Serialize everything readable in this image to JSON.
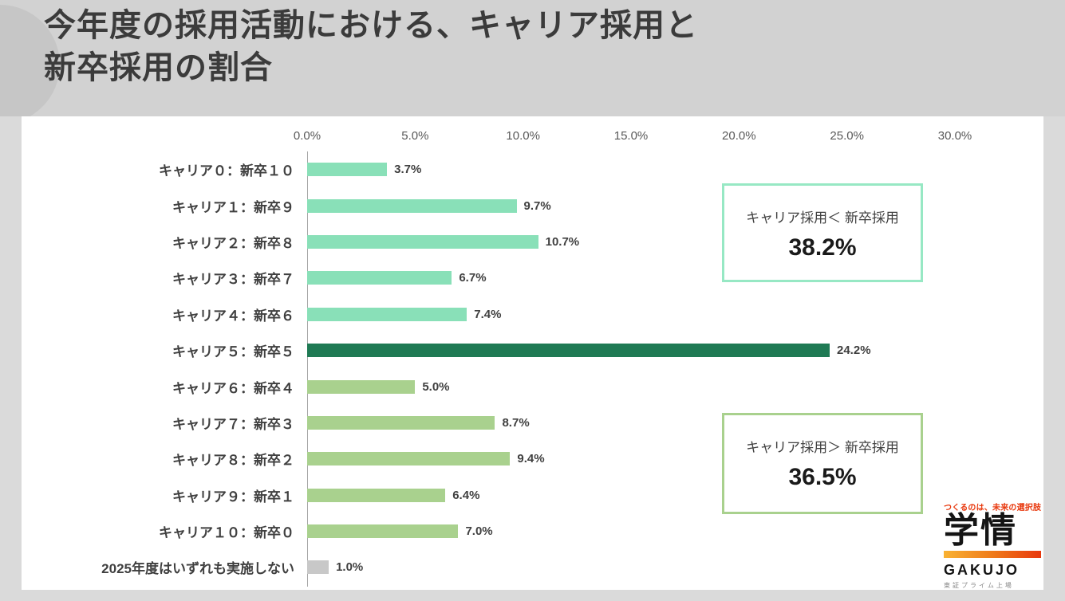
{
  "header": {
    "title_line1": "今年度の採用活動における、キャリア採用と",
    "title_line2": "新卒採用の割合"
  },
  "chart_data": {
    "type": "bar",
    "orientation": "horizontal",
    "title": "今年度の採用活動における、キャリア採用と新卒採用の割合",
    "axis_ticks": [
      "0.0%",
      "5.0%",
      "10.0%",
      "15.0%",
      "20.0%",
      "25.0%",
      "30.0%"
    ],
    "axis_max": 30,
    "grid": false,
    "categories": [
      "キャリア０：新卒１０",
      "キャリア１：新卒９",
      "キャリア２：新卒８",
      "キャリア３：新卒７",
      "キャリア４：新卒６",
      "キャリア５：新卒５",
      "キャリア６：新卒４",
      "キャリア７：新卒３",
      "キャリア８：新卒２",
      "キャリア９：新卒１",
      "キャリア１０：新卒０",
      "2025年度はいずれも実施しない"
    ],
    "values": [
      3.7,
      9.7,
      10.7,
      6.7,
      7.4,
      24.2,
      5.0,
      8.7,
      9.4,
      6.4,
      7.0,
      1.0
    ],
    "value_labels": [
      "3.7%",
      "9.7%",
      "10.7%",
      "6.7%",
      "7.4%",
      "24.2%",
      "5.0%",
      "8.7%",
      "9.4%",
      "6.4%",
      "7.0%",
      "1.0%"
    ],
    "bar_colors": [
      "#89e0b8",
      "#89e0b8",
      "#89e0b8",
      "#89e0b8",
      "#89e0b8",
      "#1f7a54",
      "#a9d18e",
      "#a9d18e",
      "#a9d18e",
      "#a9d18e",
      "#a9d18e",
      "#c8c8c8"
    ],
    "palette": {
      "mint_green": "#89e0b8",
      "dark_green": "#1f7a54",
      "olive_green": "#a9d18e",
      "gray": "#c8c8c8"
    }
  },
  "annotations": [
    {
      "label": "キャリア採用＜ 新卒採用",
      "value": "38.2%",
      "border_color": "#97e8c4"
    },
    {
      "label": "キャリア採用＞ 新卒採用",
      "value": "36.5%",
      "border_color": "#a9d18e"
    }
  ],
  "logo": {
    "tagline": "つくるのは、未来の選択肢",
    "brand": "学情",
    "wordmark": "GAKUJO",
    "subtext": "東証プライム上場",
    "accent_color": "#e8380d"
  }
}
